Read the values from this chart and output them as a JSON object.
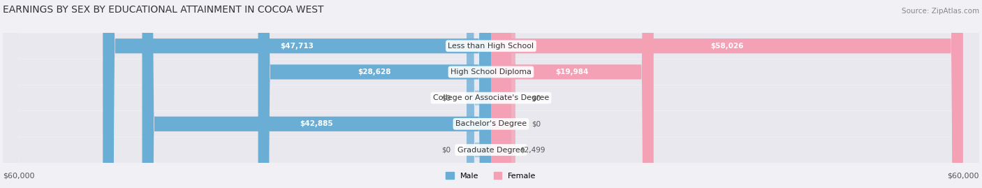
{
  "title": "EARNINGS BY SEX BY EDUCATIONAL ATTAINMENT IN COCOA WEST",
  "source": "Source: ZipAtlas.com",
  "categories": [
    "Less than High School",
    "High School Diploma",
    "College or Associate's Degree",
    "Bachelor's Degree",
    "Graduate Degree"
  ],
  "male_values": [
    47713,
    28628,
    0,
    42885,
    0
  ],
  "female_values": [
    58026,
    19984,
    0,
    0,
    2499
  ],
  "male_color": "#6aaed6",
  "female_color": "#f4a0b5",
  "male_label_color_inside": "#ffffff",
  "male_label_color_outside": "#555555",
  "female_label_color_inside": "#ffffff",
  "female_label_color_outside": "#555555",
  "max_val": 60000,
  "xlabel_left": "$60,000",
  "xlabel_right": "$60,000",
  "legend_male": "Male",
  "legend_female": "Female",
  "background_color": "#f0f0f5",
  "bar_background_color": "#e8e8ee",
  "title_fontsize": 10,
  "source_fontsize": 7.5,
  "label_fontsize": 7.5,
  "category_fontsize": 8,
  "axis_fontsize": 8
}
